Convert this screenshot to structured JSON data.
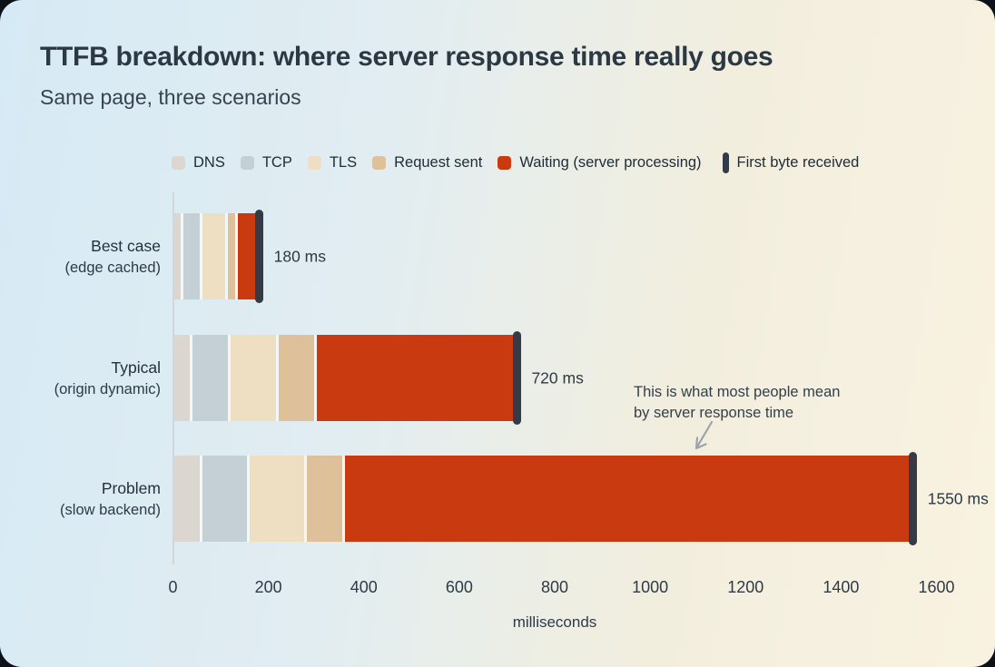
{
  "chart_data": {
    "type": "bar",
    "orientation": "horizontal",
    "stacked": true,
    "title": "TTFB breakdown: where server response time really goes",
    "subtitle": "Same page, three scenarios",
    "xlabel": "milliseconds",
    "xlim": [
      0,
      1600
    ],
    "xticks": [
      0,
      200,
      400,
      600,
      800,
      1000,
      1200,
      1400,
      1600
    ],
    "grid": false,
    "legend_position": "top",
    "categories": [
      "Best case (edge cached)",
      "Typical (origin dynamic)",
      "Problem (slow backend)"
    ],
    "row_labels": [
      {
        "title": "Best case",
        "subtitle": "(edge cached)"
      },
      {
        "title": "Typical",
        "subtitle": "(origin dynamic)"
      },
      {
        "title": "Problem",
        "subtitle": "(slow backend)"
      }
    ],
    "series": [
      {
        "name": "DNS",
        "color": "#dcd6d0",
        "values": [
          20,
          40,
          60
        ]
      },
      {
        "name": "TCP",
        "color": "#c5cfd6",
        "values": [
          40,
          80,
          100
        ]
      },
      {
        "name": "TLS",
        "color": "#eedfc2",
        "values": [
          55,
          100,
          120
        ]
      },
      {
        "name": "Request sent",
        "color": "#dec09a",
        "values": [
          20,
          80,
          80
        ]
      },
      {
        "name": "Waiting (server processing)",
        "color": "#c93a11",
        "values": [
          45,
          420,
          1190
        ]
      }
    ],
    "totals": [
      180,
      720,
      1550
    ],
    "total_labels": [
      "180 ms",
      "720 ms",
      "1550 ms"
    ],
    "marker": {
      "label": "First byte received",
      "color": "#343b47"
    },
    "annotation": {
      "line1": "This is what most people mean",
      "line2": "by server response time"
    }
  },
  "colors": {
    "card_gradient_start": "#d6eaf5",
    "card_gradient_end": "#f9f2e1",
    "title_text": "#2c3945",
    "axis_text": "#2e3b47",
    "waiting_red": "#c93a11",
    "first_byte_dark": "#343b47",
    "arrow_gray": "#9ba4aa"
  }
}
